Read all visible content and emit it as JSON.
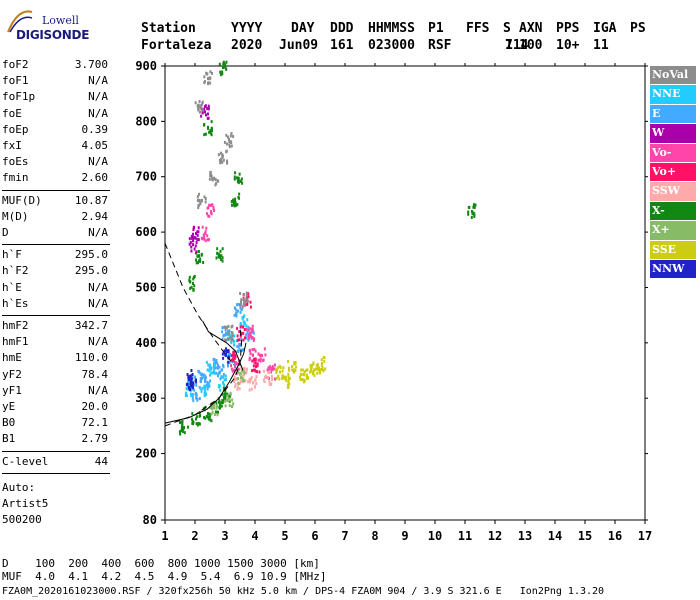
{
  "logo": {
    "top": "Lowell",
    "bottom": "DIGISONDE"
  },
  "header": {
    "labels": [
      "Station",
      "YYYY",
      "DAY",
      "DDD",
      "HHMMSS",
      "P1",
      "FFS",
      "S",
      "AXN",
      "PPS",
      "IGA",
      "PS"
    ],
    "values": [
      "Fortaleza",
      "2020",
      "Jun09",
      "161",
      "023000",
      "RSF",
      "1",
      "714",
      "100",
      "10+",
      "11"
    ]
  },
  "params": [
    {
      "k": "foF2",
      "v": "3.700"
    },
    {
      "k": "foF1",
      "v": "N/A"
    },
    {
      "k": "foF1p",
      "v": "N/A"
    },
    {
      "k": "foE",
      "v": "N/A"
    },
    {
      "k": "foEp",
      "v": "0.39"
    },
    {
      "k": "fxI",
      "v": "4.05"
    },
    {
      "k": "foEs",
      "v": "N/A"
    },
    {
      "k": "fmin",
      "v": "2.60"
    },
    {
      "k": "MUF(D)",
      "v": "10.87"
    },
    {
      "k": "M(D)",
      "v": "2.94"
    },
    {
      "k": "D",
      "v": "N/A"
    },
    {
      "k": "h`F",
      "v": "295.0"
    },
    {
      "k": "h`F2",
      "v": "295.0"
    },
    {
      "k": "h`E",
      "v": "N/A"
    },
    {
      "k": "h`Es",
      "v": "N/A"
    },
    {
      "k": "hmF2",
      "v": "342.7"
    },
    {
      "k": "hmF1",
      "v": "N/A"
    },
    {
      "k": "hmE",
      "v": "110.0"
    },
    {
      "k": "yF2",
      "v": "78.4"
    },
    {
      "k": "yF1",
      "v": "N/A"
    },
    {
      "k": "yE",
      "v": "20.0"
    },
    {
      "k": "B0",
      "v": "72.1"
    },
    {
      "k": "B1",
      "v": "2.79"
    },
    {
      "k": "C-level",
      "v": "44"
    }
  ],
  "autoscale": {
    "line1": "Auto:",
    "line2": "Artist5",
    "line3": "500200"
  },
  "legend": [
    {
      "label": "NoVal",
      "color": "#8c8c8c"
    },
    {
      "label": "NNE",
      "color": "#22ccff"
    },
    {
      "label": "E",
      "color": "#44aaff"
    },
    {
      "label": "W",
      "color": "#aa00aa"
    },
    {
      "label": "Vo-",
      "color": "#ff44aa"
    },
    {
      "label": "Vo+",
      "color": "#ff1166"
    },
    {
      "label": "SSW",
      "color": "#ffaaaa"
    },
    {
      "label": "X-",
      "color": "#118811"
    },
    {
      "label": "X+",
      "color": "#88bb66"
    },
    {
      "label": "SSE",
      "color": "#cccc11"
    },
    {
      "label": "NNW",
      "color": "#2222cc"
    }
  ],
  "footer": {
    "d_label": "D",
    "d_values": [
      "100",
      "200",
      "400",
      "600",
      "800",
      "1000",
      "1500",
      "3000",
      "[km]"
    ],
    "muf_label": "MUF",
    "muf_values": [
      "4.0",
      "4.1",
      "4.2",
      "4.5",
      "4.9",
      "5.4",
      "6.9",
      "10.9",
      "[MHz]"
    ],
    "file_line": "FZA0M_2020161023000.RSF / 320fx256h 50 kHz 5.0 km / DPS-4 FZA0M 904 / 3.9 S 321.6 E   Ion2Png 1.3.20"
  },
  "chart_data": {
    "type": "scatter",
    "xlim": [
      1,
      17
    ],
    "ylim": [
      80,
      900
    ],
    "x_ticks": [
      1,
      2,
      3,
      4,
      5,
      6,
      7,
      8,
      9,
      10,
      11,
      12,
      13,
      14,
      15,
      16,
      17
    ],
    "y_ticks": [
      80,
      200,
      300,
      400,
      500,
      600,
      700,
      800,
      900
    ],
    "grid": false,
    "legend_position": "right",
    "series": [
      {
        "name": "E",
        "color": "#44aaff",
        "points": [
          [
            2.0,
            310
          ],
          [
            2.4,
            330
          ],
          [
            2.8,
            350
          ],
          [
            3.2,
            370
          ],
          [
            3.5,
            400
          ],
          [
            3.0,
            420
          ],
          [
            2.6,
            360
          ],
          [
            3.8,
            420
          ],
          [
            2.2,
            345
          ],
          [
            3.4,
            460
          ],
          [
            1.9,
            330
          ]
        ]
      },
      {
        "name": "NNE",
        "color": "#22ccff",
        "points": [
          [
            2.3,
            320
          ],
          [
            2.9,
            330
          ],
          [
            3.6,
            440
          ],
          [
            3.2,
            410
          ],
          [
            2.5,
            355
          ],
          [
            1.8,
            320
          ]
        ]
      },
      {
        "name": "Vo-",
        "color": "#ff44aa",
        "points": [
          [
            3.3,
            360
          ],
          [
            3.8,
            420
          ],
          [
            4.2,
            380
          ],
          [
            4.5,
            350
          ],
          [
            3.9,
            380
          ],
          [
            2.3,
            600
          ],
          [
            2.5,
            640
          ]
        ]
      },
      {
        "name": "Vo+",
        "color": "#ff1166",
        "points": [
          [
            3.2,
            380
          ],
          [
            3.5,
            420
          ],
          [
            4.0,
            360
          ],
          [
            3.7,
            480
          ]
        ]
      },
      {
        "name": "SSW",
        "color": "#ffaaaa",
        "points": [
          [
            3.4,
            330
          ],
          [
            3.6,
            345
          ],
          [
            4.4,
            340
          ],
          [
            3.9,
            330
          ]
        ]
      },
      {
        "name": "SSE",
        "color": "#cccc11",
        "points": [
          [
            4.8,
            350
          ],
          [
            5.2,
            360
          ],
          [
            5.6,
            345
          ],
          [
            6.0,
            355
          ],
          [
            6.2,
            365
          ],
          [
            5.0,
            335
          ],
          [
            5.8,
            350
          ]
        ]
      },
      {
        "name": "X-",
        "color": "#118811",
        "points": [
          [
            1.6,
            250
          ],
          [
            2.0,
            265
          ],
          [
            2.4,
            275
          ],
          [
            2.8,
            290
          ],
          [
            3.0,
            310
          ],
          [
            2.8,
            560
          ],
          [
            3.3,
            660
          ],
          [
            3.4,
            700
          ],
          [
            1.9,
            510
          ],
          [
            2.1,
            560
          ],
          [
            2.4,
            790
          ],
          [
            2.9,
            900
          ],
          [
            11.2,
            640
          ]
        ]
      },
      {
        "name": "X+",
        "color": "#88bb66",
        "points": [
          [
            2.6,
            285
          ],
          [
            3.1,
            300
          ],
          [
            3.5,
            340
          ]
        ]
      },
      {
        "name": "W",
        "color": "#aa00aa",
        "points": [
          [
            1.9,
            580
          ],
          [
            2.0,
            600
          ],
          [
            2.3,
            820
          ]
        ]
      },
      {
        "name": "NNW",
        "color": "#2222cc",
        "points": [
          [
            1.8,
            340
          ],
          [
            1.9,
            330
          ],
          [
            3.0,
            380
          ]
        ]
      },
      {
        "name": "NoVal",
        "color": "#8c8c8c",
        "points": [
          [
            2.2,
            660
          ],
          [
            2.6,
            700
          ],
          [
            2.9,
            740
          ],
          [
            3.1,
            770
          ],
          [
            2.4,
            880
          ],
          [
            2.1,
            830
          ],
          [
            3.6,
            480
          ],
          [
            3.1,
            420
          ]
        ]
      }
    ],
    "curves": [
      {
        "name": "profile",
        "style": "solid",
        "points": [
          [
            3.6,
            350
          ],
          [
            3.35,
            385
          ],
          [
            3.05,
            400
          ],
          [
            2.75,
            410
          ],
          [
            2.45,
            420
          ],
          [
            2.25,
            440
          ]
        ]
      },
      {
        "name": "trace",
        "style": "solid",
        "points": [
          [
            1.0,
            255
          ],
          [
            1.8,
            265
          ],
          [
            2.4,
            280
          ],
          [
            2.8,
            300
          ],
          [
            3.15,
            330
          ],
          [
            3.45,
            360
          ],
          [
            3.62,
            380
          ],
          [
            3.7,
            400
          ]
        ]
      },
      {
        "name": "model",
        "style": "dashed",
        "points": [
          [
            1.0,
            250
          ],
          [
            2.0,
            270
          ],
          [
            2.8,
            300
          ],
          [
            3.3,
            335
          ],
          [
            3.5,
            360
          ],
          [
            3.55,
            400
          ],
          [
            3.5,
            430
          ]
        ]
      },
      {
        "name": "model-upper",
        "style": "dashed",
        "points": [
          [
            1.0,
            580
          ],
          [
            1.6,
            500
          ],
          [
            2.1,
            450
          ],
          [
            2.6,
            410
          ],
          [
            3.0,
            380
          ],
          [
            3.3,
            360
          ]
        ]
      }
    ]
  }
}
